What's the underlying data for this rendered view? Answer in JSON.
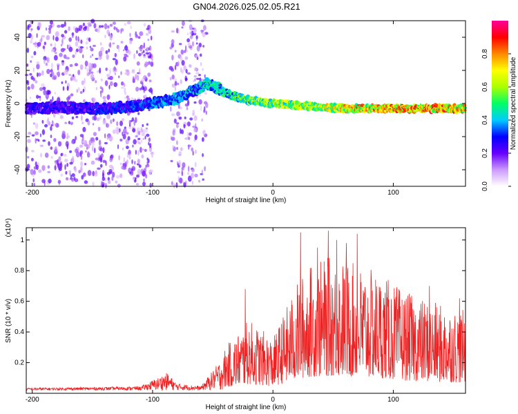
{
  "figure": {
    "title": "GN04.2026.025.02.05.R21"
  },
  "chart_data": [
    {
      "type": "heatmap",
      "xlabel": "Height of straight line (km)",
      "ylabel": "Frequency (Hz)",
      "xlim": [
        -205,
        160
      ],
      "ylim": [
        -50,
        50
      ],
      "x_ticks": [
        -200,
        -100,
        0,
        100
      ],
      "y_ticks": [
        -40,
        -20,
        0,
        20,
        40
      ],
      "colorbar": {
        "label": "Normalized spectral amplitude",
        "range": [
          0,
          1
        ],
        "ticks": [
          0.0,
          0.2,
          0.4,
          0.6,
          0.8
        ],
        "tick_labels": [
          "0.0",
          "0.2",
          "0.4",
          "0.6",
          "0.8"
        ],
        "colors": [
          "#ffffff",
          "#cc99ff",
          "#6600ff",
          "#0000ff",
          "#00ccff",
          "#00ff66",
          "#aaff00",
          "#ffff00",
          "#ff8800",
          "#ff0000",
          "#ff0099"
        ]
      },
      "ridge": [
        {
          "x": -195,
          "f": -3,
          "amp": 0.3
        },
        {
          "x": -180,
          "f": -2,
          "amp": 0.3
        },
        {
          "x": -160,
          "f": -3,
          "amp": 0.3
        },
        {
          "x": -140,
          "f": -3,
          "amp": 0.32
        },
        {
          "x": -120,
          "f": -2,
          "amp": 0.35
        },
        {
          "x": -100,
          "f": 0,
          "amp": 0.4
        },
        {
          "x": -80,
          "f": 3,
          "amp": 0.42
        },
        {
          "x": -65,
          "f": 8,
          "amp": 0.45
        },
        {
          "x": -55,
          "f": 12,
          "amp": 0.5
        },
        {
          "x": -45,
          "f": 9,
          "amp": 0.5
        },
        {
          "x": -35,
          "f": 5,
          "amp": 0.55
        },
        {
          "x": -20,
          "f": 2,
          "amp": 0.65
        },
        {
          "x": 0,
          "f": 0,
          "amp": 0.7
        },
        {
          "x": 20,
          "f": -1,
          "amp": 0.7
        },
        {
          "x": 40,
          "f": -2,
          "amp": 0.75
        },
        {
          "x": 60,
          "f": -3,
          "amp": 0.8
        },
        {
          "x": 80,
          "f": -3,
          "amp": 0.85
        },
        {
          "x": 100,
          "f": -3,
          "amp": 0.9
        },
        {
          "x": 120,
          "f": -3,
          "amp": 0.9
        },
        {
          "x": 140,
          "f": -3,
          "amp": 0.9
        },
        {
          "x": 160,
          "f": -3,
          "amp": 0.85
        }
      ],
      "noise_regions": [
        {
          "x0": -205,
          "x1": -100,
          "density": 0.9
        },
        {
          "x0": -85,
          "x1": -55,
          "density": 0.8
        }
      ]
    },
    {
      "type": "line",
      "xlabel": "Height of straight line (km)",
      "ylabel": "SNR (10 * v/v)",
      "y_multiplier": "(x10⁴)",
      "xlim": [
        -205,
        160
      ],
      "ylim": [
        0,
        1.08
      ],
      "x_ticks": [
        -200,
        -100,
        0,
        100
      ],
      "y_ticks": [
        0.2,
        0.4,
        0.6,
        0.8,
        1.0
      ],
      "color": "#ee2222",
      "envelope": [
        {
          "x": -205,
          "y": 0.03
        },
        {
          "x": -150,
          "y": 0.035
        },
        {
          "x": -110,
          "y": 0.04
        },
        {
          "x": -95,
          "y": 0.1
        },
        {
          "x": -88,
          "y": 0.13
        },
        {
          "x": -80,
          "y": 0.06
        },
        {
          "x": -60,
          "y": 0.04
        },
        {
          "x": -40,
          "y": 0.25
        },
        {
          "x": -20,
          "y": 0.4
        },
        {
          "x": 0,
          "y": 0.3
        },
        {
          "x": 10,
          "y": 0.45
        },
        {
          "x": 20,
          "y": 0.6
        },
        {
          "x": 30,
          "y": 0.7
        },
        {
          "x": 50,
          "y": 0.75
        },
        {
          "x": 70,
          "y": 0.7
        },
        {
          "x": 90,
          "y": 0.65
        },
        {
          "x": 110,
          "y": 0.55
        },
        {
          "x": 130,
          "y": 0.5
        },
        {
          "x": 160,
          "y": 0.45
        }
      ],
      "peaks": [
        {
          "x": 23,
          "y": 1.05
        },
        {
          "x": 46,
          "y": 1.06
        },
        {
          "x": 53,
          "y": 1.0
        },
        {
          "x": 70,
          "y": 1.04
        },
        {
          "x": 61,
          "y": 0.98
        },
        {
          "x": 37,
          "y": 0.95
        },
        {
          "x": -23,
          "y": 0.68
        },
        {
          "x": 130,
          "y": 0.7
        },
        {
          "x": 155,
          "y": 0.62
        }
      ]
    }
  ]
}
